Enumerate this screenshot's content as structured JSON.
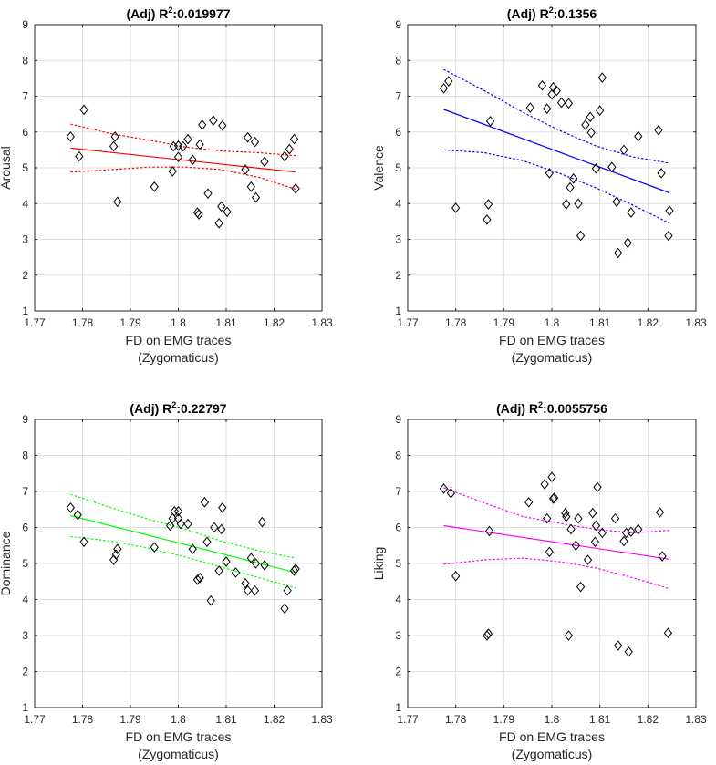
{
  "figure": {
    "xlabel_line1": "FD on EMG traces",
    "xlabel_line2": "(Zygomaticus)"
  },
  "chart_data": [
    {
      "type": "scatter",
      "title_prefix": "(Adj) R",
      "title_sup": "2",
      "title_value": ":0.019977",
      "ylabel": "Arousal",
      "xlabel": "FD on EMG traces (Zygomaticus)",
      "xlim": [
        1.77,
        1.83
      ],
      "ylim": [
        1,
        9
      ],
      "xticks": [
        "1.77",
        "1.78",
        "1.79",
        "1.8",
        "1.81",
        "1.82",
        "1.83"
      ],
      "yticks": [
        "1",
        "2",
        "3",
        "4",
        "5",
        "6",
        "7",
        "8",
        "9"
      ],
      "grid": true,
      "color": "#ff0000",
      "fit": {
        "x": [
          1.7775,
          1.8245
        ],
        "y": [
          5.55,
          4.88
        ]
      },
      "ci_upper": {
        "x": [
          1.7775,
          1.786,
          1.794,
          1.8015,
          1.809,
          1.817,
          1.8245
        ],
        "y": [
          6.22,
          5.95,
          5.77,
          5.58,
          5.47,
          5.42,
          5.34
        ]
      },
      "ci_lower": {
        "x": [
          1.7775,
          1.786,
          1.794,
          1.8015,
          1.809,
          1.817,
          1.8245
        ],
        "y": [
          4.88,
          4.95,
          5.02,
          5.02,
          4.95,
          4.73,
          4.4
        ]
      },
      "points": {
        "x": [
          1.7775,
          1.7793,
          1.7803,
          1.7865,
          1.7868,
          1.7873,
          1.795,
          1.7988,
          1.799,
          1.8,
          1.8,
          1.801,
          1.802,
          1.803,
          1.804,
          1.8043,
          1.8045,
          1.805,
          1.8062,
          1.8073,
          1.8085,
          1.809,
          1.8092,
          1.8102,
          1.814,
          1.8145,
          1.8152,
          1.816,
          1.8162,
          1.818,
          1.8222,
          1.8232,
          1.8242,
          1.8245
        ],
        "y": [
          5.87,
          5.32,
          6.62,
          5.6,
          5.87,
          4.05,
          4.47,
          4.9,
          5.6,
          5.3,
          5.62,
          5.6,
          5.8,
          5.22,
          3.75,
          3.7,
          5.65,
          6.2,
          4.28,
          6.32,
          3.45,
          3.92,
          6.18,
          3.77,
          4.95,
          5.85,
          4.47,
          5.72,
          4.17,
          5.17,
          5.32,
          5.52,
          5.8,
          4.42
        ]
      }
    },
    {
      "type": "scatter",
      "title_prefix": "(Adj) R",
      "title_sup": "2",
      "title_value": ":0.1356",
      "ylabel": "Valence",
      "xlabel": "FD on EMG traces (Zygomaticus)",
      "xlim": [
        1.77,
        1.83
      ],
      "ylim": [
        1,
        9
      ],
      "xticks": [
        "1.77",
        "1.78",
        "1.79",
        "1.8",
        "1.81",
        "1.82",
        "1.83"
      ],
      "yticks": [
        "1",
        "2",
        "3",
        "4",
        "5",
        "6",
        "7",
        "8",
        "9"
      ],
      "grid": true,
      "color": "#0000ff",
      "fit": {
        "x": [
          1.7775,
          1.8245
        ],
        "y": [
          6.63,
          4.3
        ]
      },
      "ci_upper": {
        "x": [
          1.7775,
          1.786,
          1.794,
          1.8015,
          1.809,
          1.817,
          1.8245
        ],
        "y": [
          7.75,
          7.15,
          6.55,
          6.05,
          5.62,
          5.3,
          5.13
        ]
      },
      "ci_lower": {
        "x": [
          1.7775,
          1.786,
          1.794,
          1.8015,
          1.809,
          1.817,
          1.8245
        ],
        "y": [
          5.5,
          5.42,
          5.2,
          4.85,
          4.45,
          3.95,
          3.45
        ]
      },
      "points": {
        "x": [
          1.7775,
          1.7785,
          1.78,
          1.7865,
          1.7868,
          1.7872,
          1.7955,
          1.798,
          1.799,
          1.7995,
          1.8,
          1.8003,
          1.801,
          1.802,
          1.803,
          1.8035,
          1.8038,
          1.8045,
          1.8055,
          1.806,
          1.807,
          1.808,
          1.8082,
          1.8092,
          1.81,
          1.8105,
          1.8125,
          1.8135,
          1.8138,
          1.815,
          1.8158,
          1.8165,
          1.818,
          1.8222,
          1.8228,
          1.8243,
          1.8245
        ],
        "y": [
          7.22,
          7.42,
          3.88,
          3.55,
          3.98,
          6.3,
          6.68,
          7.3,
          6.65,
          4.85,
          7.05,
          7.25,
          7.15,
          6.82,
          3.98,
          6.8,
          4.45,
          4.7,
          4.0,
          3.1,
          6.2,
          6.42,
          5.98,
          4.98,
          6.6,
          7.52,
          5.02,
          4.05,
          2.62,
          5.5,
          2.9,
          3.75,
          5.88,
          6.05,
          4.85,
          3.1,
          3.8
        ]
      }
    },
    {
      "type": "scatter",
      "title_prefix": "(Adj) R",
      "title_sup": "2",
      "title_value": ":0.22797",
      "ylabel": "Dominance",
      "xlabel": "FD on EMG traces (Zygomaticus)",
      "xlim": [
        1.77,
        1.83
      ],
      "ylim": [
        1,
        9
      ],
      "xticks": [
        "1.77",
        "1.78",
        "1.79",
        "1.8",
        "1.81",
        "1.82",
        "1.83"
      ],
      "yticks": [
        "1",
        "2",
        "3",
        "4",
        "5",
        "6",
        "7",
        "8",
        "9"
      ],
      "grid": true,
      "color": "#00ff00",
      "fit": {
        "x": [
          1.7775,
          1.8245
        ],
        "y": [
          6.33,
          4.75
        ]
      },
      "ci_upper": {
        "x": [
          1.7775,
          1.786,
          1.794,
          1.8015,
          1.809,
          1.817,
          1.8245
        ],
        "y": [
          6.92,
          6.55,
          6.22,
          5.95,
          5.62,
          5.35,
          5.15
        ]
      },
      "ci_lower": {
        "x": [
          1.7775,
          1.786,
          1.794,
          1.8015,
          1.809,
          1.817,
          1.8245
        ],
        "y": [
          5.75,
          5.62,
          5.42,
          5.18,
          4.9,
          4.6,
          4.32
        ]
      },
      "points": {
        "x": [
          1.7775,
          1.779,
          1.7803,
          1.7865,
          1.787,
          1.7873,
          1.795,
          1.7983,
          1.7988,
          1.7992,
          1.8,
          1.8,
          1.8005,
          1.802,
          1.803,
          1.804,
          1.8045,
          1.8055,
          1.806,
          1.8068,
          1.8075,
          1.8085,
          1.809,
          1.8092,
          1.81,
          1.812,
          1.814,
          1.8145,
          1.8152,
          1.816,
          1.8162,
          1.8175,
          1.818,
          1.8222,
          1.8228,
          1.8242,
          1.8245
        ],
        "y": [
          6.55,
          6.35,
          5.6,
          5.1,
          5.25,
          5.4,
          5.45,
          6.05,
          6.25,
          6.45,
          6.25,
          6.45,
          6.1,
          6.1,
          5.4,
          4.55,
          4.6,
          6.7,
          5.6,
          3.97,
          6.0,
          4.8,
          5.95,
          6.55,
          5.05,
          4.75,
          4.45,
          4.25,
          5.15,
          4.25,
          5.0,
          6.15,
          4.95,
          3.75,
          4.25,
          4.8,
          4.85
        ]
      }
    },
    {
      "type": "scatter",
      "title_prefix": "(Adj) R",
      "title_sup": "2",
      "title_value": ":0.0055756",
      "ylabel": "Liking",
      "xlabel": "FD on EMG traces (Zygomaticus)",
      "xlim": [
        1.77,
        1.83
      ],
      "ylim": [
        1,
        9
      ],
      "xticks": [
        "1.77",
        "1.78",
        "1.79",
        "1.8",
        "1.81",
        "1.82",
        "1.83"
      ],
      "yticks": [
        "1",
        "2",
        "3",
        "4",
        "5",
        "6",
        "7",
        "8",
        "9"
      ],
      "grid": true,
      "color": "#ff00ff",
      "fit": {
        "x": [
          1.7775,
          1.8245
        ],
        "y": [
          6.05,
          5.12
        ]
      },
      "ci_upper": {
        "x": [
          1.7775,
          1.786,
          1.794,
          1.8015,
          1.809,
          1.817,
          1.8245
        ],
        "y": [
          7.1,
          6.68,
          6.3,
          6.12,
          5.95,
          5.85,
          5.92
        ]
      },
      "ci_lower": {
        "x": [
          1.7775,
          1.786,
          1.794,
          1.8015,
          1.809,
          1.817,
          1.8245
        ],
        "y": [
          4.98,
          5.1,
          5.15,
          5.05,
          4.88,
          4.6,
          4.3
        ]
      },
      "points": {
        "x": [
          1.7775,
          1.779,
          1.78,
          1.7865,
          1.7868,
          1.787,
          1.7952,
          1.7985,
          1.799,
          1.7995,
          1.8,
          1.8003,
          1.8005,
          1.8028,
          1.803,
          1.8035,
          1.804,
          1.805,
          1.8055,
          1.806,
          1.8075,
          1.8085,
          1.809,
          1.8092,
          1.8095,
          1.8105,
          1.8132,
          1.8138,
          1.815,
          1.8155,
          1.816,
          1.8165,
          1.818,
          1.8225,
          1.823,
          1.8242
        ],
        "y": [
          7.08,
          6.95,
          4.65,
          3.0,
          3.05,
          5.9,
          6.7,
          7.2,
          6.25,
          5.32,
          7.4,
          6.8,
          6.82,
          6.4,
          6.3,
          3.0,
          5.95,
          5.5,
          6.25,
          4.35,
          5.1,
          6.4,
          5.6,
          6.05,
          7.12,
          5.85,
          6.25,
          2.72,
          5.62,
          5.85,
          2.55,
          5.88,
          5.95,
          6.42,
          5.2,
          3.07
        ]
      }
    }
  ]
}
